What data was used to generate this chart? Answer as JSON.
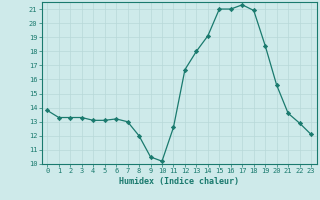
{
  "x": [
    0,
    1,
    2,
    3,
    4,
    5,
    6,
    7,
    8,
    9,
    10,
    11,
    12,
    13,
    14,
    15,
    16,
    17,
    18,
    19,
    20,
    21,
    22,
    23
  ],
  "y": [
    13.8,
    13.3,
    13.3,
    13.3,
    13.1,
    13.1,
    13.2,
    13.0,
    12.0,
    10.5,
    10.2,
    12.6,
    16.7,
    18.0,
    19.1,
    21.0,
    21.0,
    21.3,
    20.9,
    18.4,
    15.6,
    13.6,
    12.9,
    12.1
  ],
  "xlabel": "Humidex (Indice chaleur)",
  "ylabel": "",
  "ylim": [
    10,
    21.5
  ],
  "xlim": [
    -0.5,
    23.5
  ],
  "yticks": [
    10,
    11,
    12,
    13,
    14,
    15,
    16,
    17,
    18,
    19,
    20,
    21
  ],
  "xticks": [
    0,
    1,
    2,
    3,
    4,
    5,
    6,
    7,
    8,
    9,
    10,
    11,
    12,
    13,
    14,
    15,
    16,
    17,
    18,
    19,
    20,
    21,
    22,
    23
  ],
  "line_color": "#1a7a6e",
  "marker": "D",
  "marker_size": 2.2,
  "bg_color": "#ceeaea",
  "grid_color": "#b8d8d8",
  "axes_color": "#1a7a6e",
  "tick_label_color": "#1a7a6e",
  "xlabel_color": "#1a7a6e",
  "font_family": "monospace",
  "tick_fontsize": 5.0,
  "xlabel_fontsize": 6.0
}
